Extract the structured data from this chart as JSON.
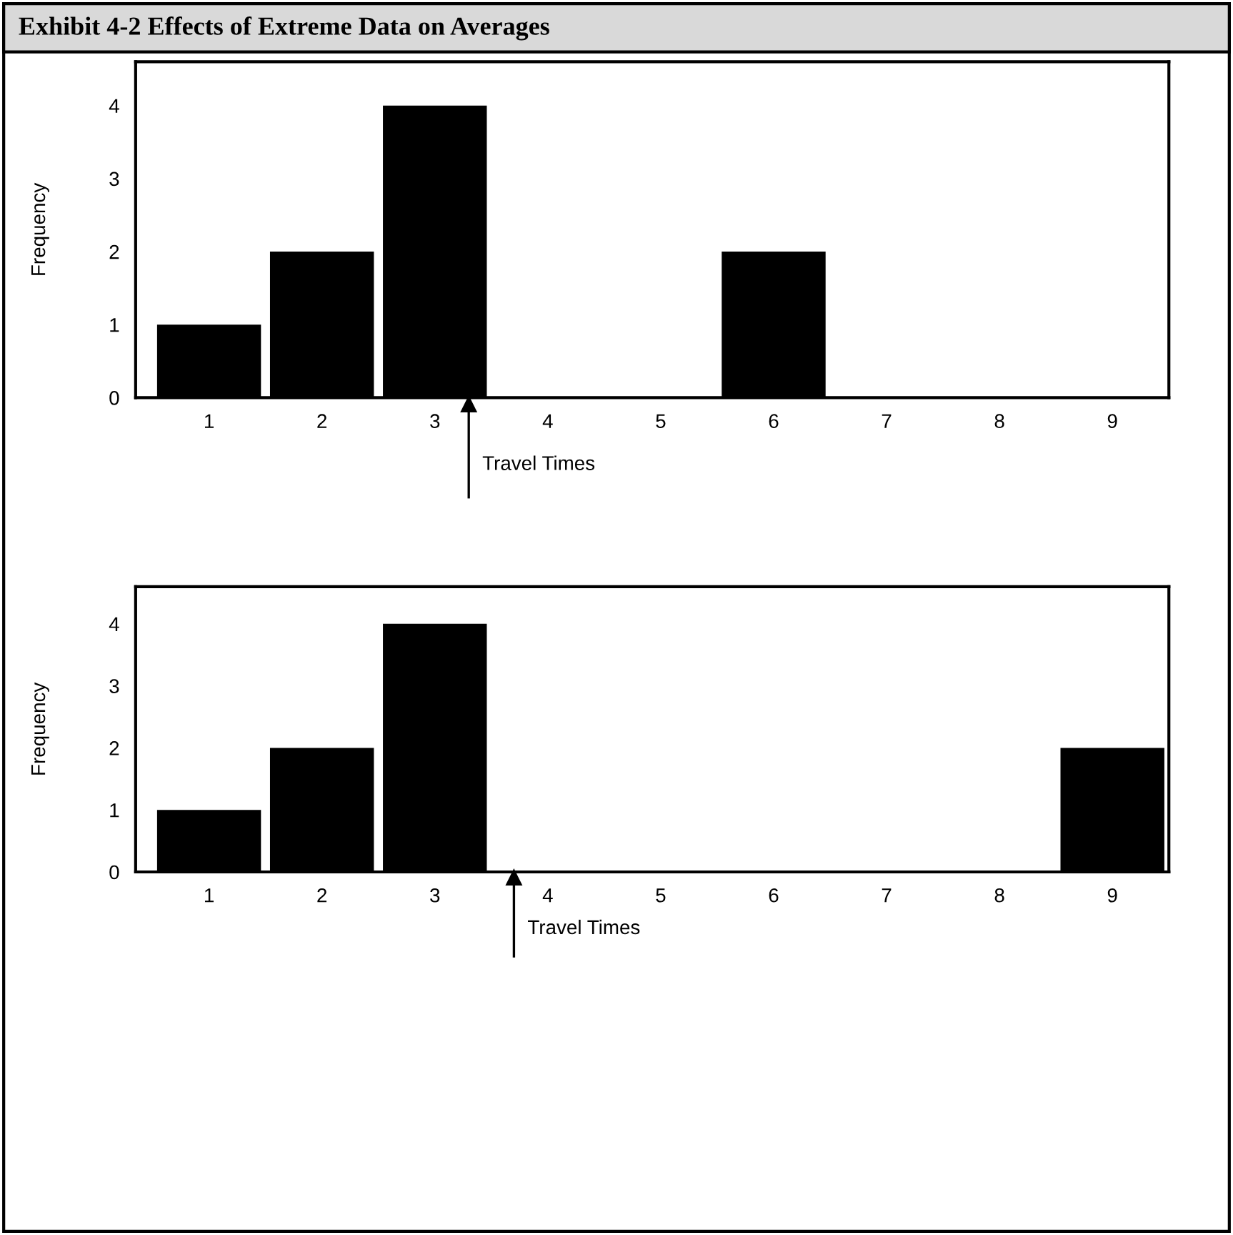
{
  "chart_data": [
    {
      "type": "bar",
      "title": "Exhibit 4-2 Effects of Extreme Data on Averages",
      "ylabel": "Frequency",
      "x": [
        1,
        2,
        3,
        4,
        5,
        6,
        7,
        8,
        9
      ],
      "values": [
        1,
        2,
        4,
        0,
        0,
        2,
        0,
        0,
        0
      ],
      "color": "#000000",
      "xlim": [
        0.35,
        9.5
      ],
      "xticks": [
        1,
        2,
        3,
        4,
        5,
        6,
        7,
        8,
        9
      ],
      "ylim": [
        0,
        4.6
      ],
      "yticks": [
        0,
        1,
        2,
        3,
        4
      ],
      "grid": false,
      "ref_lines": [
        {
          "axis": "x",
          "value": 3.3,
          "label": "Travel Times"
        }
      ]
    },
    {
      "type": "bar",
      "ylabel": "Frequency",
      "x": [
        1,
        2,
        3,
        4,
        5,
        6,
        7,
        8,
        9
      ],
      "values": [
        1,
        2,
        4,
        0,
        0,
        0,
        0,
        0,
        2
      ],
      "color": "#000000",
      "xlim": [
        0.35,
        9.5
      ],
      "xticks": [
        1,
        2,
        3,
        4,
        5,
        6,
        7,
        8,
        9
      ],
      "ylim": [
        0,
        4.6
      ],
      "yticks": [
        0,
        1,
        2,
        3,
        4
      ],
      "grid": false,
      "ref_lines": [
        {
          "axis": "x",
          "value": 3.7,
          "label": "Travel Times"
        }
      ]
    }
  ]
}
